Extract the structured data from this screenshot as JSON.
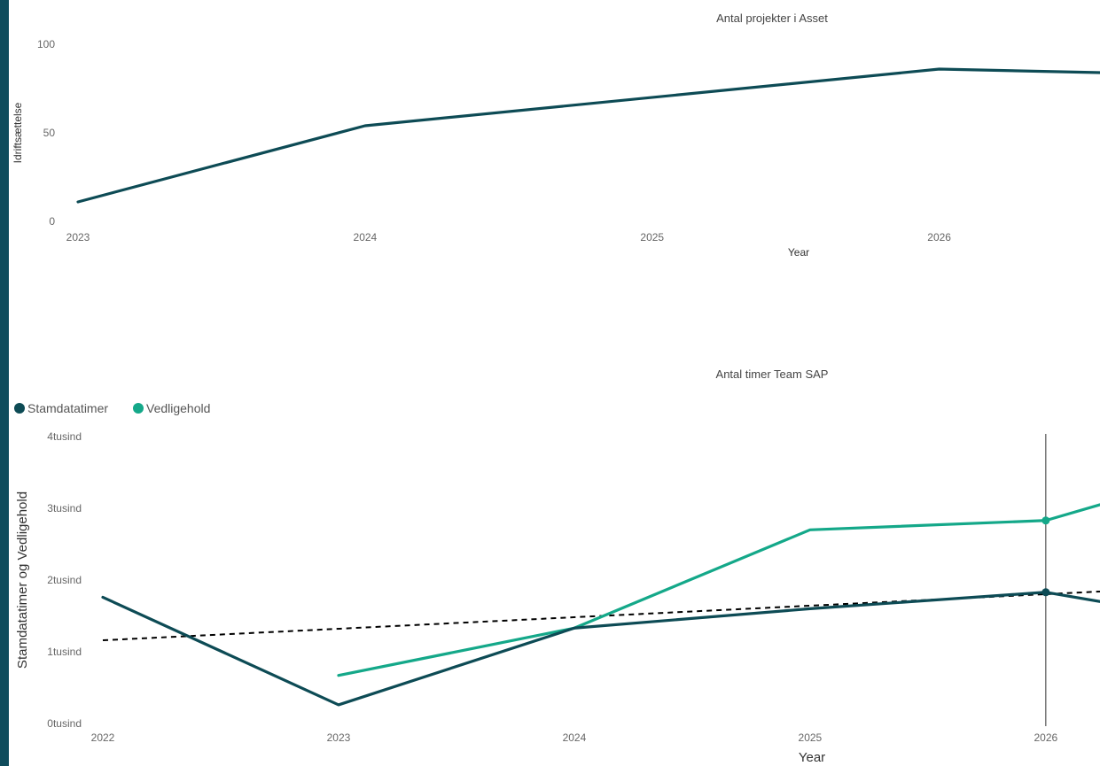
{
  "theme": {
    "left_bar_color": "#0f4c5c",
    "stamdata_color": "#0d4b55",
    "vedligehold_color": "#14a889",
    "trend_color": "#000000",
    "cursor_color": "#555555"
  },
  "chart_data": [
    {
      "type": "line",
      "title": "Antal projekter i Asset",
      "xlabel": "Year",
      "ylabel": "Idriftsættelse",
      "x_ticks": [
        "2023",
        "2024",
        "2025",
        "2026"
      ],
      "y_ticks": [
        "0",
        "50",
        "100"
      ],
      "xlim": [
        2023,
        2026.56
      ],
      "ylim": [
        0,
        100
      ],
      "grid": false,
      "series": [
        {
          "color": "#0d4b55",
          "points": [
            [
              2023,
              11
            ],
            [
              2024,
              54
            ],
            [
              2026,
              86
            ],
            [
              2026.56,
              84
            ]
          ]
        }
      ]
    },
    {
      "type": "line",
      "title": "Antal timer Team SAP",
      "xlabel": "Year",
      "ylabel": "Stamdatatimer og Vedligehold",
      "legend_position": "top-left",
      "x_ticks": [
        "2022",
        "2023",
        "2024",
        "2025",
        "2026"
      ],
      "y_ticks": [
        "0tusind",
        "1tusind",
        "2tusind",
        "3tusind",
        "4tusind"
      ],
      "xlim": [
        2022,
        2026.23
      ],
      "ylim": [
        0,
        4000
      ],
      "grid": false,
      "cursor_x": 2026,
      "series": [
        {
          "name": "Stamdatatimer",
          "color": "#0d4b55",
          "points": [
            [
              2022,
              1760
            ],
            [
              2023,
              260
            ],
            [
              2024,
              1330
            ],
            [
              2025,
              1600
            ],
            [
              2026,
              1830
            ],
            [
              2026.23,
              1700
            ]
          ]
        },
        {
          "name": "Vedligehold",
          "color": "#14a889",
          "points": [
            [
              2023,
              670
            ],
            [
              2024,
              1330
            ],
            [
              2025,
              2700
            ],
            [
              2026,
              2830
            ],
            [
              2026.23,
              3050
            ]
          ]
        }
      ],
      "trend_line": {
        "points": [
          [
            2022,
            1160
          ],
          [
            2026.23,
            1840
          ]
        ],
        "style": "dashed"
      },
      "highlight_markers": [
        {
          "series": "Vedligehold",
          "x": 2026,
          "y": 2830
        },
        {
          "series": "Stamdatatimer",
          "x": 2026,
          "y": 1830
        }
      ]
    }
  ]
}
